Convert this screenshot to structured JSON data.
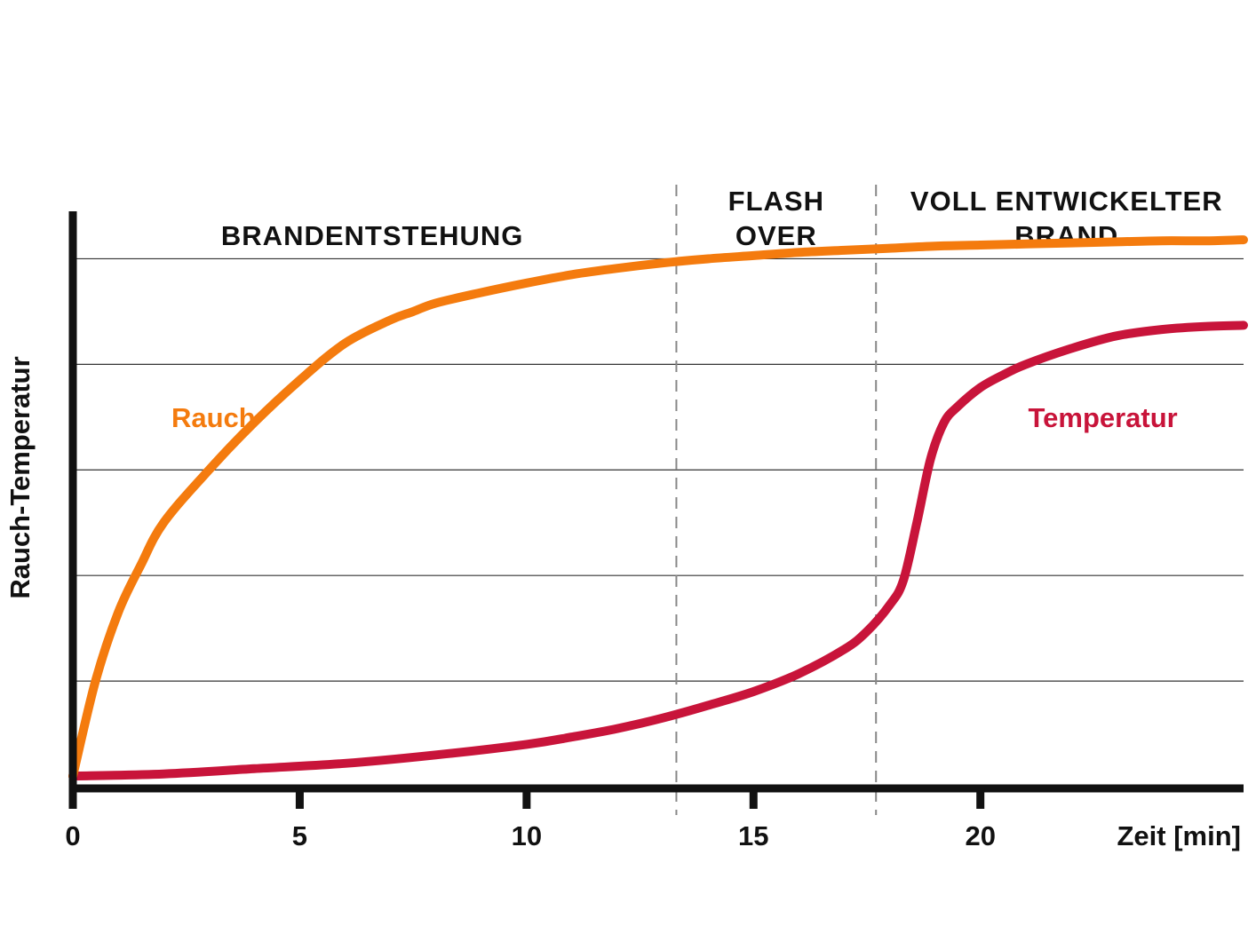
{
  "colors": {
    "rauch": "#F47B0E",
    "temperatur": "#C8143A",
    "axis": "#111111",
    "grid": "#333333",
    "divider": "#888888"
  },
  "chart_data": {
    "type": "line",
    "xlabel": "Zeit [min]",
    "ylabel": "Rauch-Temperatur",
    "xlim": [
      0,
      25.8
    ],
    "ylim": [
      0,
      5.5
    ],
    "x_ticks": [
      0,
      5,
      10,
      15,
      20
    ],
    "x_tick_labels": [
      "0",
      "5",
      "10",
      "15",
      "20"
    ],
    "y_gridlines": [
      1,
      2,
      3,
      4,
      5
    ],
    "y_tick_labels_shown": false,
    "phase_dividers": [
      13.3,
      17.7
    ],
    "phases": [
      {
        "lines": [
          "BRANDENTSTEHUNG"
        ],
        "x_center": 6.6
      },
      {
        "lines": [
          "FLASH",
          "OVER"
        ],
        "x_center": 15.5
      },
      {
        "lines": [
          "VOLL ENTWICKELTER",
          "BRAND"
        ],
        "x_center": 21.9
      }
    ],
    "series": [
      {
        "name": "Rauch",
        "label_x": 3.1,
        "label_y": 3.5,
        "x": [
          0,
          0.5,
          1,
          1.5,
          2,
          3,
          4,
          5,
          6,
          7,
          7.5,
          8,
          9,
          10,
          11,
          12,
          13,
          14,
          15,
          16,
          17,
          18,
          19,
          20,
          21,
          22,
          23,
          24,
          25,
          25.8
        ],
        "y": [
          0.1,
          1.0,
          1.65,
          2.1,
          2.5,
          3.0,
          3.45,
          3.85,
          4.2,
          4.42,
          4.5,
          4.58,
          4.68,
          4.77,
          4.85,
          4.91,
          4.96,
          5.0,
          5.03,
          5.06,
          5.08,
          5.1,
          5.12,
          5.13,
          5.14,
          5.15,
          5.16,
          5.17,
          5.17,
          5.18
        ]
      },
      {
        "name": "Temperatur",
        "label_x": 22.7,
        "label_y": 3.5,
        "x": [
          0,
          2,
          4,
          6,
          8,
          10,
          11,
          12,
          13,
          14,
          15,
          16,
          17,
          17.5,
          18,
          18.3,
          18.6,
          18.9,
          19.2,
          19.5,
          20,
          20.5,
          21,
          22,
          23,
          24,
          25,
          25.8
        ],
        "y": [
          0.1,
          0.12,
          0.17,
          0.22,
          0.3,
          0.4,
          0.47,
          0.55,
          0.65,
          0.77,
          0.9,
          1.07,
          1.3,
          1.47,
          1.72,
          1.95,
          2.5,
          3.1,
          3.45,
          3.6,
          3.78,
          3.9,
          4.0,
          4.15,
          4.27,
          4.33,
          4.36,
          4.37
        ]
      }
    ]
  }
}
